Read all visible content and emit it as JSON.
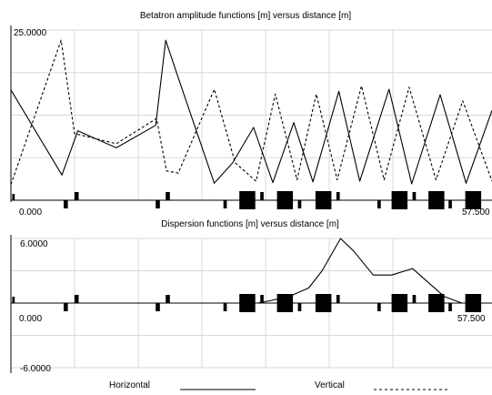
{
  "chart_data": [
    {
      "type": "line",
      "title": "Betatron amplitude functions [m] versus distance [m]",
      "xlim": [
        0,
        57.5
      ],
      "ylim": [
        0,
        25
      ],
      "x_min_label": "0.000",
      "x_max_label": "57.500",
      "y_max_label": "25.0000",
      "grid": true,
      "series": [
        {
          "name": "Horizontal",
          "style": "solid",
          "points": [
            [
              0.0,
              16.2
            ],
            [
              6.1,
              3.7
            ],
            [
              8.0,
              10.2
            ],
            [
              12.6,
              7.7
            ],
            [
              17.3,
              11.0
            ],
            [
              18.5,
              23.5
            ],
            [
              20.0,
              18.0
            ],
            [
              24.3,
              2.5
            ],
            [
              26.5,
              5.5
            ],
            [
              29.0,
              10.7
            ],
            [
              31.3,
              2.6
            ],
            [
              33.8,
              11.4
            ],
            [
              36.1,
              2.7
            ],
            [
              39.2,
              16.0
            ],
            [
              41.7,
              2.8
            ],
            [
              45.2,
              16.3
            ],
            [
              47.9,
              2.4
            ],
            [
              51.3,
              15.5
            ],
            [
              54.4,
              2.5
            ],
            [
              57.5,
              13.2
            ]
          ]
        },
        {
          "name": "Vertical",
          "style": "dashed",
          "points": [
            [
              0.0,
              2.3
            ],
            [
              6.0,
              23.5
            ],
            [
              7.6,
              9.8
            ],
            [
              12.6,
              8.3
            ],
            [
              17.4,
              12.0
            ],
            [
              18.6,
              4.3
            ],
            [
              20.0,
              4.0
            ],
            [
              24.3,
              16.3
            ],
            [
              26.8,
              5.5
            ],
            [
              29.3,
              2.8
            ],
            [
              31.6,
              15.6
            ],
            [
              34.2,
              3.0
            ],
            [
              36.5,
              15.6
            ],
            [
              39.0,
              3.0
            ],
            [
              41.9,
              16.8
            ],
            [
              44.6,
              3.0
            ],
            [
              47.6,
              16.6
            ],
            [
              50.8,
              3.0
            ],
            [
              54.0,
              14.6
            ],
            [
              57.5,
              2.8
            ]
          ]
        }
      ]
    },
    {
      "type": "line",
      "title": "Dispersion functions [m] versus distance [m]",
      "xlim": [
        0,
        57.5
      ],
      "ylim": [
        -6,
        6
      ],
      "x_min_label": "0.000",
      "x_max_label": "57.500",
      "y_max_label": "6.0000",
      "y_min_label": "-6.0000",
      "grid": true,
      "series": [
        {
          "name": "Horizontal",
          "style": "solid",
          "points": [
            [
              0.0,
              0.0
            ],
            [
              29.5,
              0.0
            ],
            [
              31.2,
              0.25
            ],
            [
              33.5,
              0.7
            ],
            [
              35.6,
              1.4
            ],
            [
              37.2,
              3.0
            ],
            [
              39.4,
              6.0
            ],
            [
              41.0,
              4.8
            ],
            [
              43.3,
              2.6
            ],
            [
              45.5,
              2.6
            ],
            [
              48.0,
              3.2
            ],
            [
              51.8,
              0.6
            ],
            [
              53.9,
              0.0
            ],
            [
              57.5,
              0.0
            ]
          ]
        }
      ]
    }
  ],
  "lattice_elements": [
    {
      "x": 0.15,
      "w": 0.3,
      "kind": "tick"
    },
    {
      "x": 6.3,
      "w": 0.5,
      "kind": "down"
    },
    {
      "x": 7.6,
      "w": 0.5,
      "kind": "up"
    },
    {
      "x": 17.3,
      "w": 0.5,
      "kind": "down"
    },
    {
      "x": 18.5,
      "w": 0.5,
      "kind": "up"
    },
    {
      "x": 25.4,
      "w": 0.4,
      "kind": "down"
    },
    {
      "x": 27.3,
      "w": 1.9,
      "kind": "block"
    },
    {
      "x": 29.8,
      "w": 0.4,
      "kind": "up"
    },
    {
      "x": 31.8,
      "w": 1.9,
      "kind": "block"
    },
    {
      "x": 34.3,
      "w": 0.4,
      "kind": "down"
    },
    {
      "x": 36.4,
      "w": 1.9,
      "kind": "block"
    },
    {
      "x": 38.9,
      "w": 0.4,
      "kind": "up"
    },
    {
      "x": 43.8,
      "w": 0.4,
      "kind": "down"
    },
    {
      "x": 45.5,
      "w": 1.9,
      "kind": "block"
    },
    {
      "x": 48.0,
      "w": 0.4,
      "kind": "up"
    },
    {
      "x": 49.9,
      "w": 1.9,
      "kind": "block"
    },
    {
      "x": 52.3,
      "w": 0.4,
      "kind": "down"
    },
    {
      "x": 54.3,
      "w": 1.9,
      "kind": "block"
    }
  ],
  "legend": {
    "horizontal_label": "Horizontal",
    "vertical_label": "Vertical"
  }
}
